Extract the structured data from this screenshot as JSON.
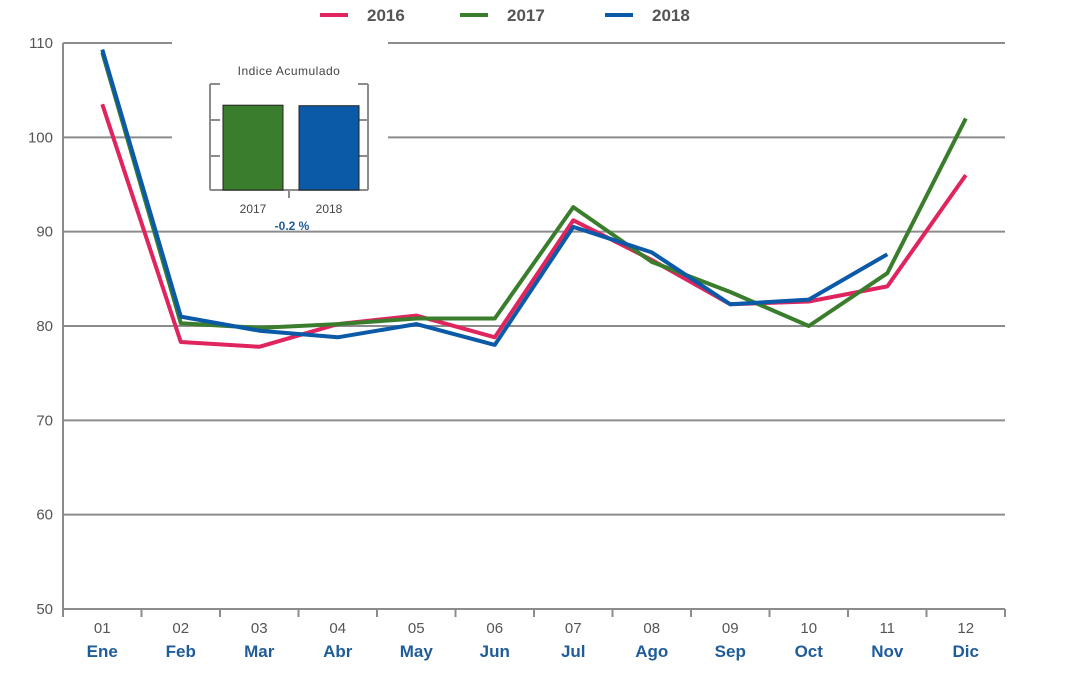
{
  "chart_data": [
    {
      "type": "line",
      "title": "",
      "xlabel": "",
      "ylabel": "",
      "ylim": [
        50,
        110
      ],
      "yticks": [
        "50",
        "60",
        "70",
        "80",
        "90",
        "100",
        "110"
      ],
      "categories": [
        "01",
        "02",
        "03",
        "04",
        "05",
        "06",
        "07",
        "08",
        "09",
        "10",
        "11",
        "12"
      ],
      "category_months": [
        "Ene",
        "Feb",
        "Mar",
        "Abr",
        "May",
        "Jun",
        "Jul",
        "Ago",
        "Sep",
        "Oct",
        "Nov",
        "Dic"
      ],
      "grid": true,
      "legend_position": "top-center",
      "series": [
        {
          "name": "2016",
          "color": "#e0245e",
          "values": [
            103.5,
            78.3,
            77.8,
            80.2,
            81.1,
            78.8,
            91.2,
            87.0,
            82.3,
            82.6,
            84.2,
            96.0
          ]
        },
        {
          "name": "2017",
          "color": "#3a7d2c",
          "values": [
            109.0,
            80.3,
            79.8,
            80.2,
            80.8,
            80.8,
            92.6,
            86.8,
            83.6,
            80.0,
            85.6,
            102.0
          ]
        },
        {
          "name": "2018",
          "color": "#0b5aa8",
          "values": [
            109.3,
            81.0,
            79.5,
            78.8,
            80.2,
            78.0,
            90.5,
            87.8,
            82.3,
            82.8,
            87.6,
            null
          ]
        }
      ]
    },
    {
      "type": "bar",
      "title": "Indice Acumulado",
      "categories": [
        "2017",
        "2018"
      ],
      "values": [
        102.0,
        101.8
      ],
      "colors": [
        "#3a7d2c",
        "#0b5aa8"
      ],
      "annotation": "-0.2 %"
    }
  ]
}
